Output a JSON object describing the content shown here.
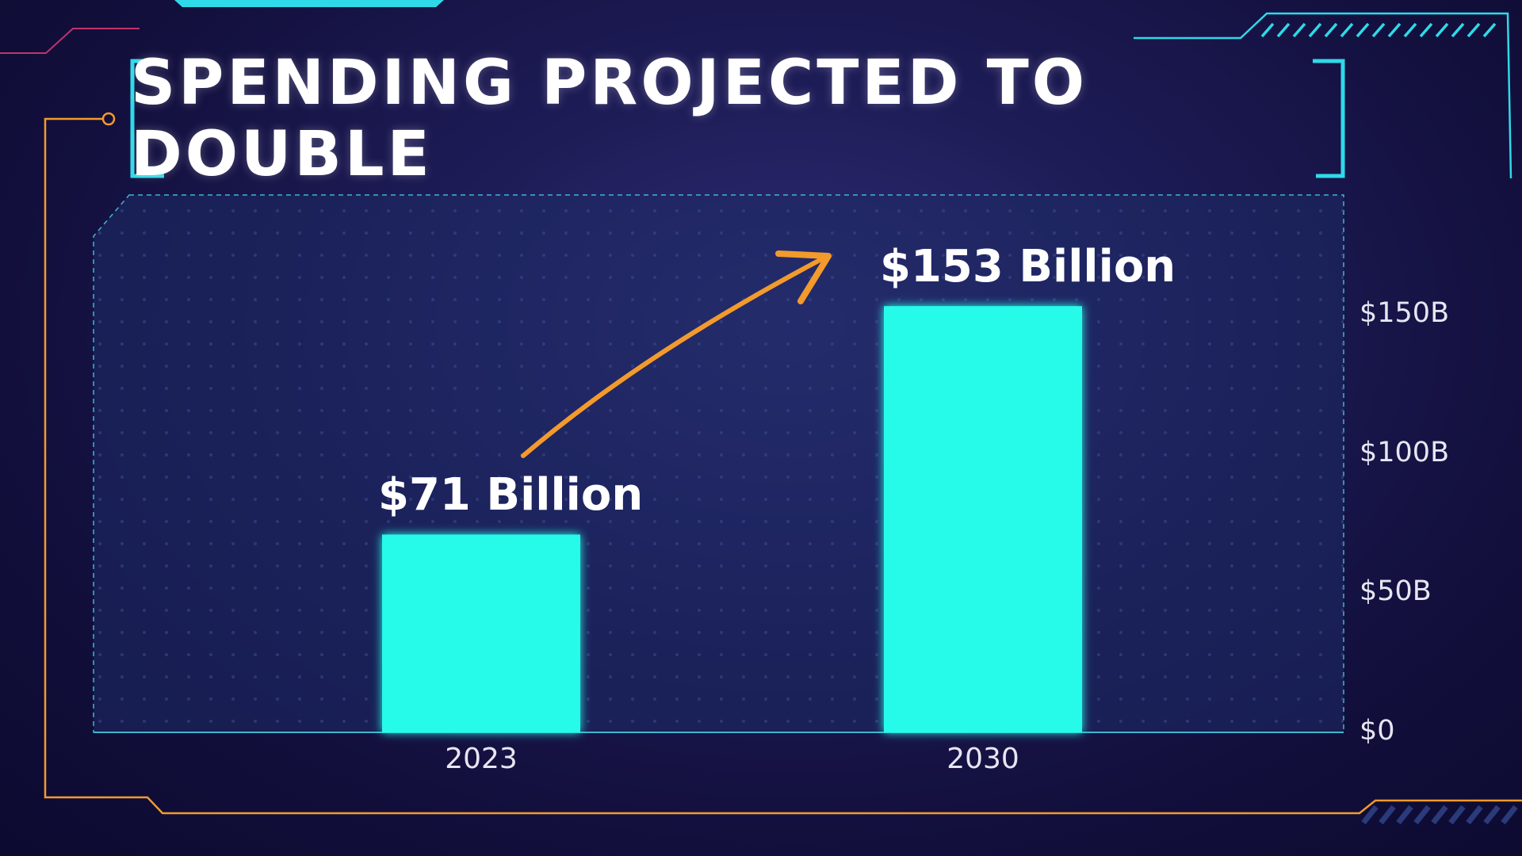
{
  "title": "SPENDING PROJECTED TO DOUBLE",
  "colors": {
    "bar": "#26fbe9",
    "accent_cyan": "#2fd9e8",
    "accent_orange": "#f39a2c",
    "arrow": "#f39a2c",
    "background": "#15124a"
  },
  "chart_data": {
    "type": "bar",
    "categories": [
      "2023",
      "2030"
    ],
    "values": [
      71,
      153
    ],
    "value_labels": [
      "$71 Billion",
      "$153 Billion"
    ],
    "yticks": [
      "$0",
      "$50B",
      "$100B",
      "$150B"
    ],
    "ytick_values": [
      0,
      50,
      100,
      150
    ],
    "ylim": [
      0,
      200
    ],
    "y_axis_side": "right",
    "grid": false,
    "annotation": "arrow-up"
  }
}
